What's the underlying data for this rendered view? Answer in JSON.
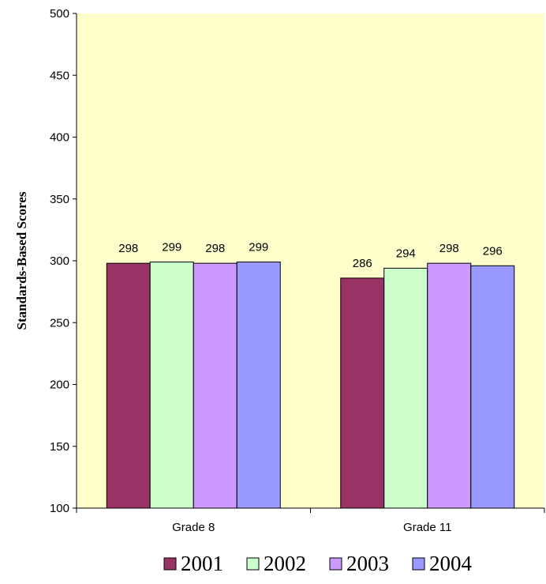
{
  "chart_data": {
    "type": "bar",
    "title": "",
    "xlabel": "",
    "ylabel": "Standards-Based Scores",
    "ylim": [
      100,
      500
    ],
    "yticks": [
      100,
      150,
      200,
      250,
      300,
      350,
      400,
      450,
      500
    ],
    "grid": false,
    "legend_position": "bottom",
    "categories": [
      "Grade 8",
      "Grade 11"
    ],
    "series": [
      {
        "name": "2001",
        "color": "#993366",
        "values": [
          298,
          286
        ]
      },
      {
        "name": "2002",
        "color": "#ccffcc",
        "values": [
          299,
          294
        ]
      },
      {
        "name": "2003",
        "color": "#cc99ff",
        "values": [
          298,
          298
        ]
      },
      {
        "name": "2004",
        "color": "#9999ff",
        "values": [
          299,
          296
        ]
      }
    ],
    "data_labels": [
      [
        "298",
        "286"
      ],
      [
        "299",
        "294"
      ],
      [
        "298",
        "298"
      ],
      [
        "299",
        "296"
      ]
    ],
    "plot_background": "#ffffcc"
  }
}
